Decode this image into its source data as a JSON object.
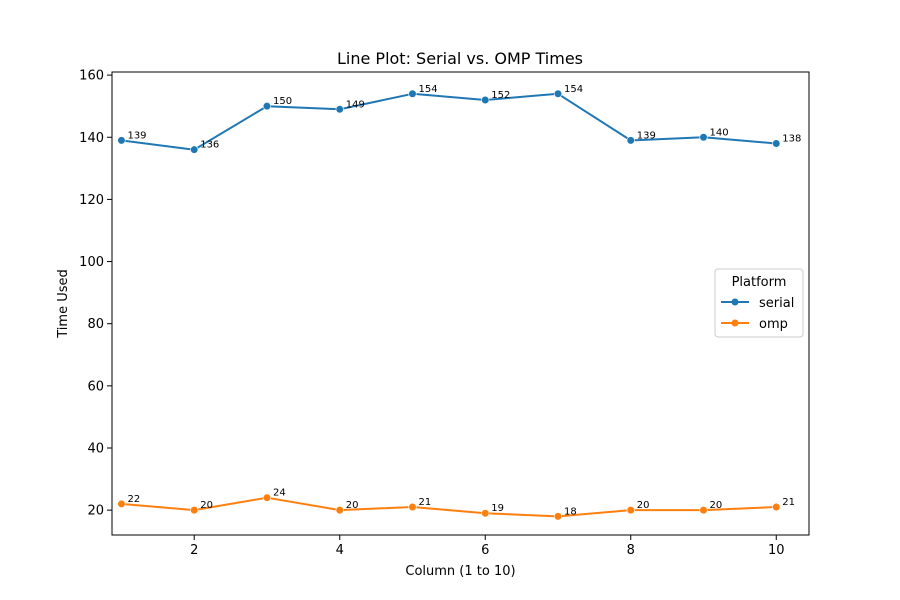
{
  "chart_data": {
    "type": "line",
    "title": "Line Plot: Serial vs. OMP Times",
    "xlabel": "Column (1 to 10)",
    "ylabel": "Time Used",
    "x": [
      1,
      2,
      3,
      4,
      5,
      6,
      7,
      8,
      9,
      10
    ],
    "xlim": [
      0.87,
      10.45
    ],
    "ylim": [
      12,
      161
    ],
    "xticks": [
      2,
      4,
      6,
      8,
      10
    ],
    "yticks": [
      20,
      40,
      60,
      80,
      100,
      120,
      140,
      160
    ],
    "grid": false,
    "legend": {
      "title": "Platform",
      "placement": "center-right"
    },
    "series": [
      {
        "name": "serial",
        "color": "#1f77b4",
        "values": [
          139,
          136,
          150,
          149,
          154,
          152,
          154,
          139,
          140,
          138
        ]
      },
      {
        "name": "omp",
        "color": "#ff7f0e",
        "values": [
          22,
          20,
          24,
          20,
          21,
          19,
          18,
          20,
          20,
          21
        ]
      }
    ]
  }
}
